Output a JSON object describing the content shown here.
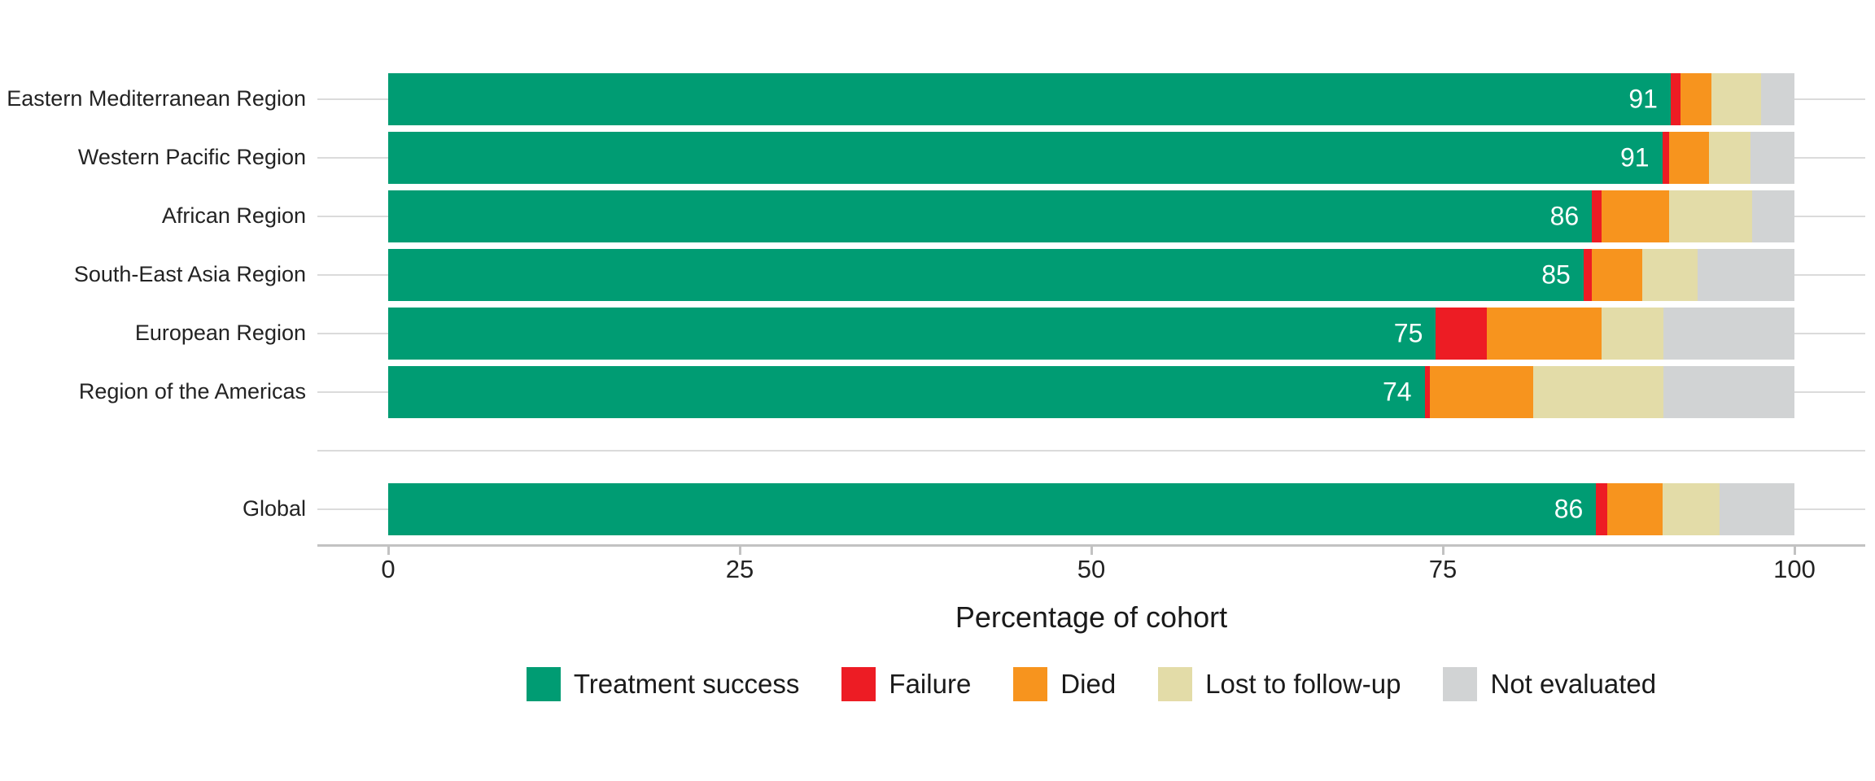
{
  "chart_data": {
    "type": "bar",
    "orientation": "horizontal",
    "stacked": true,
    "categories": [
      "Eastern Mediterranean Region",
      "Western Pacific Region",
      "African Region",
      "South-East Asia Region",
      "European Region",
      "Region of the Americas",
      "Global"
    ],
    "series": [
      {
        "name": "Treatment success",
        "color": "#009C73",
        "values": [
          91.2,
          90.6,
          85.6,
          85.0,
          74.5,
          73.7,
          85.9
        ]
      },
      {
        "name": "Failure",
        "color": "#ED1C24",
        "values": [
          0.7,
          0.5,
          0.7,
          0.6,
          3.6,
          0.4,
          0.8
        ]
      },
      {
        "name": "Died",
        "color": "#F7941E",
        "values": [
          2.2,
          2.8,
          4.8,
          3.6,
          8.2,
          7.3,
          3.9
        ]
      },
      {
        "name": "Lost to follow-up",
        "color": "#E3DCA8",
        "values": [
          3.5,
          3.0,
          5.9,
          3.9,
          4.4,
          9.3,
          4.1
        ]
      },
      {
        "name": "Not evaluated",
        "color": "#D1D3D4",
        "values": [
          2.4,
          3.1,
          3.0,
          6.9,
          9.3,
          9.3,
          5.3
        ]
      }
    ],
    "bar_labels": [
      "91",
      "91",
      "86",
      "85",
      "75",
      "74",
      "86"
    ],
    "xlabel": "Percentage of cohort",
    "x_ticks": [
      "0",
      "25",
      "50",
      "75",
      "100"
    ],
    "x_tick_values": [
      0,
      25,
      50,
      75,
      100
    ],
    "xlim": [
      0,
      100
    ],
    "gap_after_category": "Region of the Americas",
    "legend_position": "bottom",
    "grid": "horizontal-category-lines",
    "colors": {
      "gridline": "#DBDBDB",
      "axis_line": "#C2C2C2",
      "axis_text": "#232323",
      "bar_label_text": "#FFFFFF",
      "background": "#FFFFFF"
    }
  }
}
